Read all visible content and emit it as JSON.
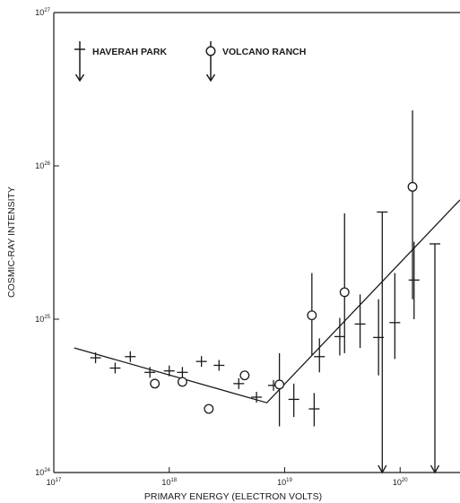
{
  "chart_data": {
    "type": "scatter",
    "title": "",
    "xlabel": "PRIMARY ENERGY (ELECTRON VOLTS)",
    "ylabel": "COSMIC-RAY INTENSITY",
    "xscale": "log",
    "yscale": "log",
    "xlim": [
      1e+17,
      3.3e+20
    ],
    "ylim": [
      1e+24,
      1e+27
    ],
    "x_ticks": [
      {
        "base": "10",
        "exp": "17",
        "value": 1e+17
      },
      {
        "base": "10",
        "exp": "18",
        "value": 1e+18
      },
      {
        "base": "10",
        "exp": "19",
        "value": 1e+19
      },
      {
        "base": "10",
        "exp": "20",
        "value": 1e+20
      }
    ],
    "y_ticks": [
      {
        "base": "10",
        "exp": "24",
        "value": 1e+24
      },
      {
        "base": "10",
        "exp": "25",
        "value": 1e+25
      },
      {
        "base": "10",
        "exp": "26",
        "value": 1e+26
      },
      {
        "base": "10",
        "exp": "27",
        "value": 1e+27
      }
    ],
    "legend": {
      "placement": "top-left",
      "entries": [
        {
          "label": "HAVERAH PARK",
          "marker": "plus"
        },
        {
          "label": "VOLCANO RANCH",
          "marker": "circle"
        }
      ]
    },
    "series": [
      {
        "name": "HAVERAH PARK",
        "marker": "plus",
        "points": [
          {
            "x": 2.3e+17,
            "y": 5.6e+24
          },
          {
            "x": 3.4e+17,
            "y": 4.8e+24
          },
          {
            "x": 4.6e+17,
            "y": 5.7e+24
          },
          {
            "x": 6.8e+17,
            "y": 4.5e+24
          },
          {
            "x": 1e+18,
            "y": 4.6e+24
          },
          {
            "x": 1.3e+18,
            "y": 4.5e+24
          },
          {
            "x": 1.9e+18,
            "y": 5.3e+24
          },
          {
            "x": 2.7e+18,
            "y": 5e+24
          },
          {
            "x": 4e+18,
            "y": 3.8e+24
          },
          {
            "x": 5.7e+18,
            "y": 3.1e+24
          },
          {
            "x": 8e+18,
            "y": 3.7e+24
          },
          {
            "x": 1.2e+19,
            "y": 3e+24,
            "yerr": [
              2.3e+24,
              3.8e+24
            ]
          },
          {
            "x": 1.8e+19,
            "y": 2.6e+24,
            "yerr": [
              2e+24,
              3.3e+24
            ]
          },
          {
            "x": 2e+19,
            "y": 5.7e+24,
            "yerr": [
              4.5e+24,
              7.5e+24
            ]
          },
          {
            "x": 3e+19,
            "y": 7.7e+24,
            "yerr": [
              5.8e+24,
              1.02e+25
            ]
          },
          {
            "x": 4.5e+19,
            "y": 9.3e+24,
            "yerr": [
              6.5e+24,
              1.45e+25
            ]
          },
          {
            "x": 6.5e+19,
            "y": 7.6e+24,
            "yerr": [
              4.3e+24,
              1.35e+25
            ]
          },
          {
            "x": 9e+19,
            "y": 9.5e+24,
            "yerr": [
              5.5e+24,
              2e+25
            ]
          },
          {
            "x": 1.32e+20,
            "y": 1.8e+25,
            "yerr": [
              1e+25,
              3.2e+25
            ]
          }
        ],
        "upper_limits": [
          {
            "x": 7e+19,
            "y": 5e+25
          },
          {
            "x": 2e+20,
            "y": 3.1e+25
          }
        ]
      },
      {
        "name": "VOLCANO RANCH",
        "marker": "circle",
        "points": [
          {
            "x": 7.5e+17,
            "y": 3.8e+24
          },
          {
            "x": 1.3e+18,
            "y": 3.9e+24
          },
          {
            "x": 2.2e+18,
            "y": 2.6e+24
          },
          {
            "x": 4.5e+18,
            "y": 4.3e+24
          },
          {
            "x": 9e+18,
            "y": 3.75e+24,
            "yerr": [
              2e+24,
              6e+24
            ]
          },
          {
            "x": 1.72e+19,
            "y": 1.06e+25,
            "yerr": [
              5.8e+24,
              2e+25
            ]
          },
          {
            "x": 3.3e+19,
            "y": 1.5e+25,
            "yerr": [
              6e+24,
              4.9e+25
            ]
          },
          {
            "x": 1.28e+20,
            "y": 7.3e+25,
            "yerr": [
              1.35e+25,
              2.3e+26
            ]
          }
        ]
      }
    ],
    "fit_line": {
      "points": [
        {
          "x": 1.5e+17,
          "y": 6.5e+24
        },
        {
          "x": 7e+18,
          "y": 2.85e+24
        },
        {
          "x": 3.3e+20,
          "y": 6e+25
        }
      ]
    }
  },
  "colors": {
    "ink": "#1a1a1a",
    "background": "#ffffff"
  }
}
